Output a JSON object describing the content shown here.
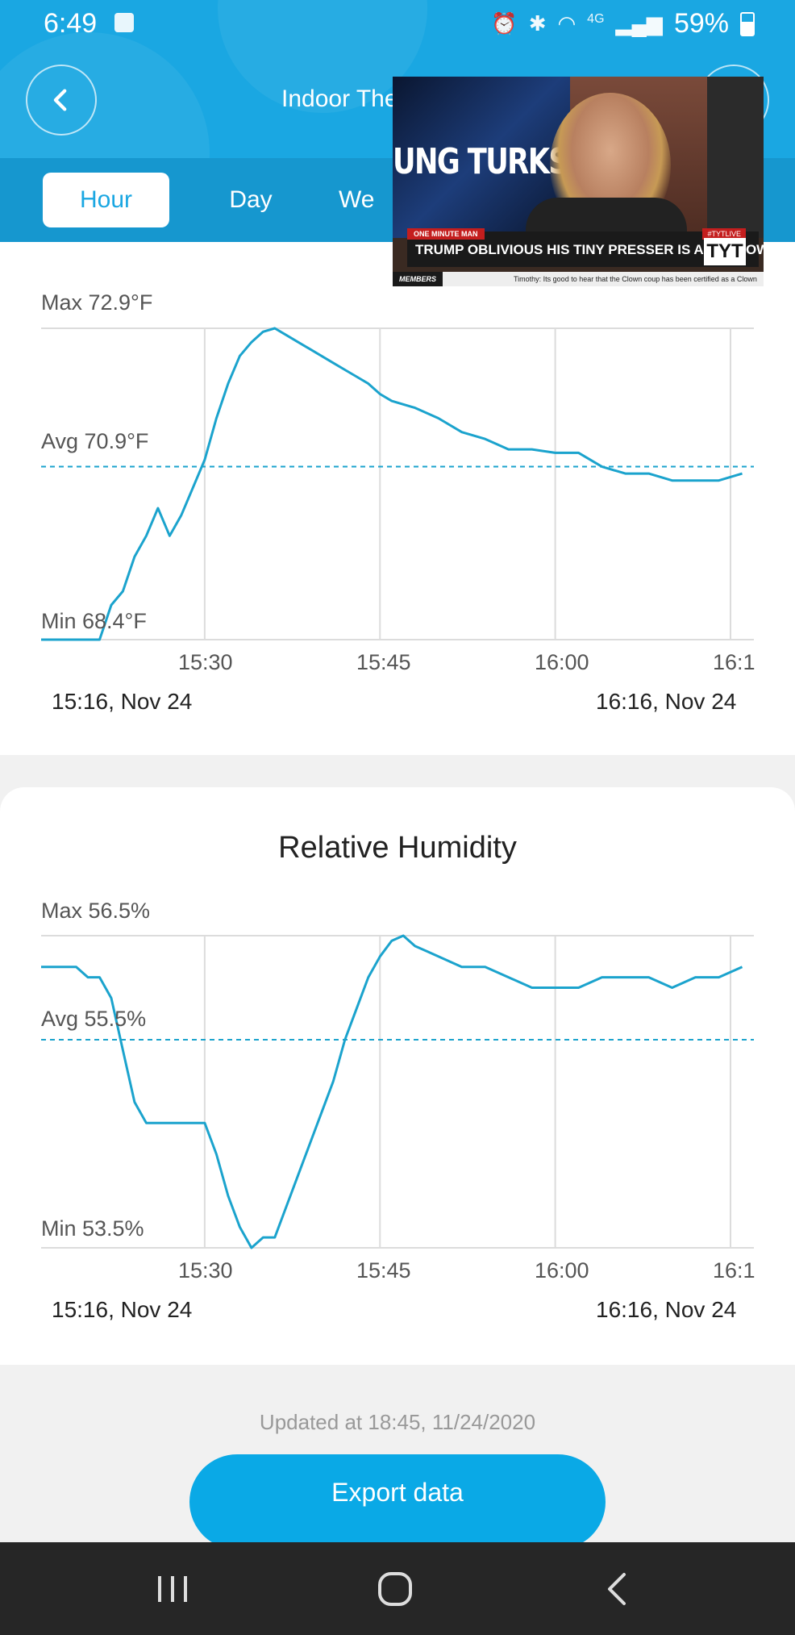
{
  "status_bar": {
    "time": "6:49",
    "network": "4G",
    "battery": "59%"
  },
  "header": {
    "title": "Indoor The"
  },
  "tabs": [
    {
      "label": "Hour",
      "active": true
    },
    {
      "label": "Day",
      "active": false
    },
    {
      "label": "We",
      "active": false
    }
  ],
  "pip_video": {
    "brand_text": "UNG TURKS",
    "tag_left": "ONE MINUTE MAN",
    "tag_right": "#TYTLIVE",
    "headline": "TRUMP OBLIVIOUS HIS TINY PRESSER IS A SELF OWN",
    "logo": "TYT",
    "ticker_label": "MEMBERS",
    "ticker_text": "Timothy: Its good to hear that the Clown coup has been certified as a Clown"
  },
  "charts": {
    "temperature": {
      "max_label": "Max 72.9°F",
      "avg_label": "Avg 70.9°F",
      "min_label": "Min 68.4°F",
      "x_ticks": [
        "15:30",
        "15:45",
        "16:00",
        "16:1"
      ],
      "range_start": "15:16,  Nov 24",
      "range_end": "16:16,  Nov 24"
    },
    "humidity": {
      "title": "Relative Humidity",
      "max_label": "Max 56.5%",
      "avg_label": "Avg 55.5%",
      "min_label": "Min 53.5%",
      "x_ticks": [
        "15:30",
        "15:45",
        "16:00",
        "16:1"
      ],
      "range_start": "15:16,  Nov 24",
      "range_end": "16:16,  Nov 24"
    }
  },
  "footer": {
    "updated": "Updated at 18:45,  11/24/2020",
    "export_label": "Export data"
  },
  "colors": {
    "primary": "#1aa7e2",
    "line": "#1ba3cd",
    "nav_bg": "#262626"
  },
  "chart_data": [
    {
      "type": "line",
      "x_unit": "minutes after 15:16",
      "x": [
        0,
        5,
        6,
        7,
        8,
        9,
        10,
        11,
        12,
        13,
        14,
        15,
        16,
        17,
        18,
        19,
        20,
        21,
        22,
        23,
        24,
        25,
        26,
        27,
        28,
        29,
        30,
        32,
        34,
        36,
        38,
        40,
        42,
        44,
        46,
        48,
        50,
        52,
        54,
        56,
        58,
        60
      ],
      "y": [
        68.4,
        68.4,
        68.9,
        69.1,
        69.6,
        69.9,
        70.3,
        69.9,
        70.2,
        70.6,
        71.0,
        71.6,
        72.1,
        72.5,
        72.7,
        72.85,
        72.9,
        72.8,
        72.7,
        72.6,
        72.5,
        72.4,
        72.3,
        72.2,
        72.1,
        71.95,
        71.85,
        71.75,
        71.6,
        71.4,
        71.3,
        71.15,
        71.15,
        71.1,
        71.1,
        70.9,
        70.8,
        70.8,
        70.7,
        70.7,
        70.7,
        70.8
      ],
      "min": 68.4,
      "avg": 70.9,
      "max": 72.9,
      "unit": "°F"
    },
    {
      "type": "line",
      "title": "Relative Humidity",
      "x_unit": "minutes after 15:16",
      "x": [
        0,
        3,
        4,
        5,
        6,
        7,
        8,
        9,
        10,
        12,
        14,
        15,
        16,
        17,
        18,
        19,
        20,
        21,
        22,
        23,
        24,
        25,
        26,
        27,
        28,
        29,
        30,
        31,
        32,
        33,
        34,
        35,
        36,
        37,
        38,
        40,
        42,
        44,
        46,
        48,
        50,
        52,
        54,
        56,
        58,
        60
      ],
      "y": [
        56.2,
        56.2,
        56.1,
        56.1,
        55.9,
        55.4,
        54.9,
        54.7,
        54.7,
        54.7,
        54.7,
        54.4,
        54.0,
        53.7,
        53.5,
        53.6,
        53.6,
        53.9,
        54.2,
        54.5,
        54.8,
        55.1,
        55.5,
        55.8,
        56.1,
        56.3,
        56.45,
        56.5,
        56.4,
        56.35,
        56.3,
        56.25,
        56.2,
        56.2,
        56.2,
        56.1,
        56.0,
        56.0,
        56.0,
        56.1,
        56.1,
        56.1,
        56.0,
        56.1,
        56.1,
        56.2
      ],
      "min": 53.5,
      "avg": 55.5,
      "max": 56.5,
      "unit": "%"
    }
  ]
}
